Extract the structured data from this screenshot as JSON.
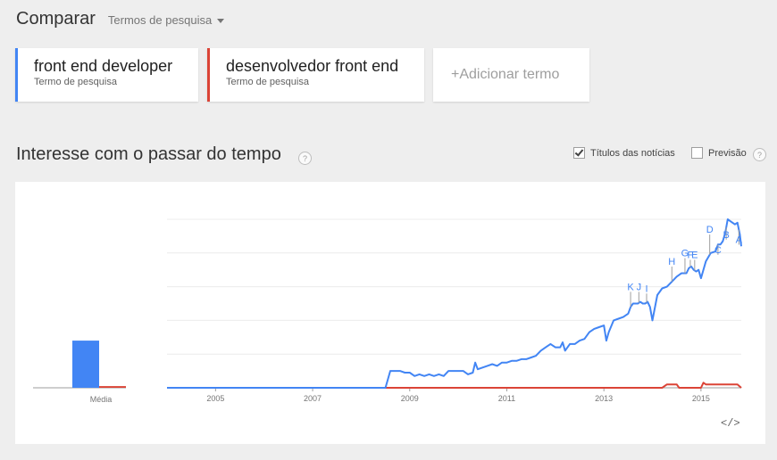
{
  "header": {
    "title": "Comparar",
    "mode_label": "Termos de pesquisa"
  },
  "terms": [
    {
      "name": "front end developer",
      "type": "Termo de pesquisa",
      "color": "#4285f4"
    },
    {
      "name": "desenvolvedor front end",
      "type": "Termo de pesquisa",
      "color": "#db4437"
    }
  ],
  "add_term": {
    "plus": "+",
    "label": "Adicionar termo"
  },
  "section": {
    "title": "Interesse com o passar do tempo",
    "help": "?",
    "headlines_label": "Títulos das notícias",
    "headlines_checked": true,
    "forecast_label": "Previsão",
    "forecast_checked": false
  },
  "embed_label": "</>",
  "chart_data": {
    "type": "line",
    "x_tick_labels": [
      "2005",
      "2007",
      "2009",
      "2011",
      "2013",
      "2015"
    ],
    "xlim": [
      2004,
      2015.83
    ],
    "ylim": [
      0,
      100
    ],
    "grid": true,
    "average": {
      "label": "Média",
      "values": [
        {
          "series": "front end developer",
          "value": 28
        },
        {
          "series": "desenvolvedor front end",
          "value": 1
        }
      ]
    },
    "series": [
      {
        "name": "front end developer",
        "color": "#4285f4",
        "points": [
          [
            2004.0,
            0
          ],
          [
            2008.0,
            0
          ],
          [
            2008.5,
            0
          ],
          [
            2008.6,
            10
          ],
          [
            2008.8,
            10
          ],
          [
            2008.9,
            9
          ],
          [
            2009.0,
            9
          ],
          [
            2009.1,
            7
          ],
          [
            2009.2,
            8
          ],
          [
            2009.3,
            7
          ],
          [
            2009.4,
            8
          ],
          [
            2009.5,
            7
          ],
          [
            2009.6,
            8
          ],
          [
            2009.7,
            7
          ],
          [
            2009.8,
            10
          ],
          [
            2009.9,
            10
          ],
          [
            2010.0,
            10
          ],
          [
            2010.1,
            10
          ],
          [
            2010.2,
            8
          ],
          [
            2010.3,
            9
          ],
          [
            2010.35,
            15
          ],
          [
            2010.4,
            11
          ],
          [
            2010.5,
            12
          ],
          [
            2010.6,
            13
          ],
          [
            2010.7,
            14
          ],
          [
            2010.8,
            13
          ],
          [
            2010.9,
            15
          ],
          [
            2011.0,
            15
          ],
          [
            2011.1,
            16
          ],
          [
            2011.2,
            16
          ],
          [
            2011.3,
            17
          ],
          [
            2011.4,
            17
          ],
          [
            2011.5,
            18
          ],
          [
            2011.6,
            19
          ],
          [
            2011.7,
            22
          ],
          [
            2011.8,
            24
          ],
          [
            2011.9,
            26
          ],
          [
            2012.0,
            24
          ],
          [
            2012.1,
            24
          ],
          [
            2012.15,
            27
          ],
          [
            2012.2,
            22
          ],
          [
            2012.3,
            26
          ],
          [
            2012.4,
            26
          ],
          [
            2012.5,
            28
          ],
          [
            2012.6,
            29
          ],
          [
            2012.7,
            33
          ],
          [
            2012.8,
            35
          ],
          [
            2012.9,
            36
          ],
          [
            2013.0,
            37
          ],
          [
            2013.05,
            28
          ],
          [
            2013.1,
            33
          ],
          [
            2013.2,
            40
          ],
          [
            2013.3,
            41
          ],
          [
            2013.4,
            42
          ],
          [
            2013.5,
            44
          ],
          [
            2013.55,
            48
          ],
          [
            2013.6,
            50
          ],
          [
            2013.7,
            50
          ],
          [
            2013.75,
            51
          ],
          [
            2013.8,
            50
          ],
          [
            2013.85,
            50
          ],
          [
            2013.9,
            51
          ],
          [
            2013.95,
            48
          ],
          [
            2014.0,
            40
          ],
          [
            2014.1,
            55
          ],
          [
            2014.2,
            59
          ],
          [
            2014.3,
            60
          ],
          [
            2014.4,
            63
          ],
          [
            2014.5,
            66
          ],
          [
            2014.6,
            68
          ],
          [
            2014.7,
            68
          ],
          [
            2014.75,
            71
          ],
          [
            2014.8,
            72
          ],
          [
            2014.85,
            70
          ],
          [
            2014.9,
            69
          ],
          [
            2014.95,
            70
          ],
          [
            2015.0,
            65
          ],
          [
            2015.1,
            75
          ],
          [
            2015.2,
            80
          ],
          [
            2015.3,
            81
          ],
          [
            2015.35,
            85
          ],
          [
            2015.4,
            85
          ],
          [
            2015.45,
            87
          ],
          [
            2015.5,
            92
          ],
          [
            2015.55,
            100
          ],
          [
            2015.6,
            99
          ],
          [
            2015.65,
            98
          ],
          [
            2015.7,
            97
          ],
          [
            2015.75,
            98
          ],
          [
            2015.8,
            91
          ],
          [
            2015.83,
            84
          ]
        ]
      },
      {
        "name": "desenvolvedor front end",
        "color": "#db4437",
        "points": [
          [
            2004.0,
            0
          ],
          [
            2014.2,
            0
          ],
          [
            2014.3,
            2
          ],
          [
            2014.5,
            2
          ],
          [
            2014.55,
            0
          ],
          [
            2015.0,
            0
          ],
          [
            2015.05,
            3
          ],
          [
            2015.1,
            2
          ],
          [
            2015.5,
            2
          ],
          [
            2015.7,
            2
          ],
          [
            2015.75,
            2
          ],
          [
            2015.83,
            0
          ]
        ]
      }
    ],
    "annotations": [
      {
        "letter": "K",
        "x": 2013.55,
        "y": 58
      },
      {
        "letter": "J",
        "x": 2013.72,
        "y": 58
      },
      {
        "letter": "I",
        "x": 2013.88,
        "y": 57
      },
      {
        "letter": "H",
        "x": 2014.4,
        "y": 73
      },
      {
        "letter": "G",
        "x": 2014.67,
        "y": 78
      },
      {
        "letter": "F",
        "x": 2014.78,
        "y": 77
      },
      {
        "letter": "E",
        "x": 2014.87,
        "y": 77
      },
      {
        "letter": "D",
        "x": 2015.18,
        "y": 92
      },
      {
        "letter": "C",
        "x": 2015.35,
        "y": 80
      },
      {
        "letter": "B",
        "x": 2015.52,
        "y": 89
      },
      {
        "letter": "A",
        "x": 2015.78,
        "y": 86
      }
    ]
  }
}
